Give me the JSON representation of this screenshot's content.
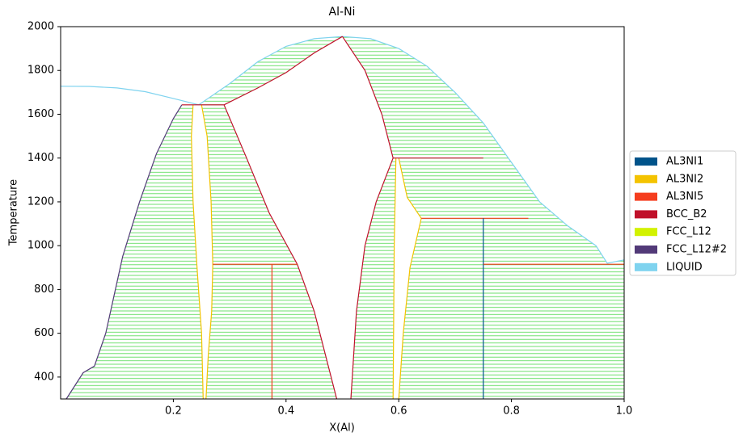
{
  "chart_data": {
    "type": "phase-diagram",
    "title": "Al-Ni",
    "xlabel": "X(Al)",
    "ylabel": "Temperature",
    "xlim": [
      0,
      1
    ],
    "ylim": [
      300,
      2000
    ],
    "xticks": [
      0.2,
      0.4,
      0.6,
      0.8,
      {
        "value": 1,
        "label": "1.0"
      }
    ],
    "yticks": [
      400,
      600,
      800,
      1000,
      1200,
      1400,
      1600,
      1800,
      2000
    ],
    "tie_line_color": "#5ddb5d",
    "series": [
      {
        "name": "AL3NI1",
        "color": "#00538a"
      },
      {
        "name": "AL3NI2",
        "color": "#f4c300"
      },
      {
        "name": "AL3NI5",
        "color": "#f53d1e"
      },
      {
        "name": "BCC_B2",
        "color": "#c0102a"
      },
      {
        "name": "FCC_L12",
        "color": "#d2f200"
      },
      {
        "name": "FCC_L12#2",
        "color": "#523a78"
      },
      {
        "name": "LIQUID",
        "color": "#7fd3ef"
      }
    ],
    "boundaries": [
      {
        "color": "#7fd3ef",
        "x": [
          0,
          0.05,
          0.1,
          0.15,
          0.2,
          0.245
        ],
        "y": [
          1728,
          1727,
          1720,
          1703,
          1672,
          1643
        ]
      },
      {
        "color": "#7fd3ef",
        "x": [
          0.245,
          0.3,
          0.35,
          0.4,
          0.45,
          0.5
        ],
        "y": [
          1643,
          1740,
          1840,
          1910,
          1945,
          1955
        ]
      },
      {
        "color": "#7fd3ef",
        "x": [
          0.5,
          0.55,
          0.6,
          0.65,
          0.7,
          0.75,
          0.8,
          0.85,
          0.9,
          0.95,
          0.97,
          1.0
        ],
        "y": [
          1955,
          1945,
          1900,
          1820,
          1700,
          1560,
          1380,
          1200,
          1090,
          1000,
          920,
          935
        ]
      },
      {
        "color": "#523a78",
        "x": [
          0.215,
          0.2,
          0.17,
          0.14,
          0.11,
          0.08,
          0.06,
          0.04,
          0.01
        ],
        "y": [
          1643,
          1580,
          1420,
          1200,
          950,
          600,
          450,
          420,
          300
        ]
      },
      {
        "color": "#f4c300",
        "x": [
          0.235,
          0.232,
          0.235,
          0.242,
          0.25,
          0.253
        ],
        "y": [
          1643,
          1500,
          1200,
          900,
          600,
          300
        ]
      },
      {
        "color": "#f4c300",
        "x": [
          0.25,
          0.26,
          0.267,
          0.27,
          0.268,
          0.262,
          0.258
        ],
        "y": [
          1643,
          1500,
          1200,
          915,
          700,
          500,
          300
        ]
      },
      {
        "color": "#c0102a",
        "x": [
          0.29,
          0.33,
          0.37,
          0.42,
          0.45,
          0.49
        ],
        "y": [
          1643,
          1400,
          1150,
          915,
          700,
          300
        ]
      },
      {
        "color": "#c0102a",
        "x": [
          0.29,
          0.35,
          0.4,
          0.45,
          0.5
        ],
        "y": [
          1643,
          1720,
          1790,
          1880,
          1955
        ]
      },
      {
        "color": "#c0102a",
        "x": [
          0.5,
          0.54,
          0.57,
          0.59
        ],
        "y": [
          1955,
          1800,
          1600,
          1400
        ]
      },
      {
        "color": "#c0102a",
        "x": [
          0.59,
          0.56,
          0.54,
          0.525,
          0.515
        ],
        "y": [
          1400,
          1200,
          1000,
          700,
          300
        ]
      },
      {
        "color": "#f53d1e",
        "x": [
          0.27,
          0.42
        ],
        "y": [
          915,
          915
        ]
      },
      {
        "color": "#f53d1e",
        "x": [
          0.375,
          0.375
        ],
        "y": [
          915,
          300
        ]
      },
      {
        "color": "#c0102a",
        "x": [
          0.215,
          0.29
        ],
        "y": [
          1643,
          1643
        ]
      },
      {
        "color": "#f4c300",
        "x": [
          0.595,
          0.592,
          0.59
        ],
        "y": [
          1400,
          1000,
          300
        ]
      },
      {
        "color": "#f4c300",
        "x": [
          0.6,
          0.615,
          0.64
        ],
        "y": [
          1400,
          1220,
          1125
        ]
      },
      {
        "color": "#f4c300",
        "x": [
          0.64,
          0.62,
          0.608,
          0.6
        ],
        "y": [
          1125,
          900,
          600,
          300
        ]
      },
      {
        "color": "#c0102a",
        "x": [
          0.59,
          0.75
        ],
        "y": [
          1400,
          1400
        ]
      },
      {
        "color": "#f53d1e",
        "x": [
          0.64,
          0.83
        ],
        "y": [
          1125,
          1125
        ]
      },
      {
        "color": "#00538a",
        "x": [
          0.75,
          0.75
        ],
        "y": [
          1125,
          300
        ]
      },
      {
        "color": "#f53d1e",
        "x": [
          0.75,
          1.0
        ],
        "y": [
          915,
          915
        ]
      }
    ]
  }
}
